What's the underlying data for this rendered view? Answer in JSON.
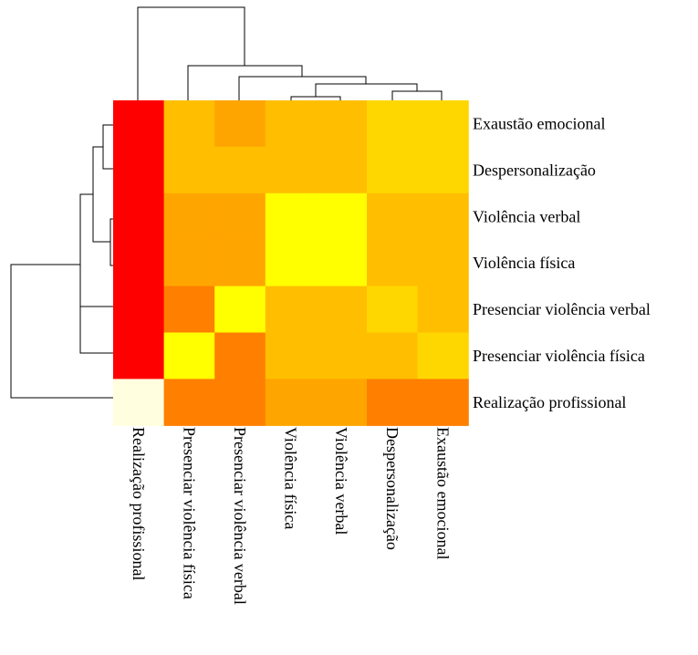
{
  "chart_data": {
    "type": "heatmap",
    "title": "",
    "rows": [
      "Exaustão emocional",
      "Despersonalização",
      "Violência verbal",
      "Violência física",
      "Presenciar violência verbal",
      "Presenciar violência física",
      "Realização profissional"
    ],
    "columns": [
      "Realização profissional",
      "Presenciar violência física",
      "Presenciar violência  verbal",
      "Violência física",
      "Violência verbal",
      "Despersonalização",
      "Exaustão emocional"
    ],
    "cell_colors": [
      [
        "#FF0000",
        "#FFBF00",
        "#FFA500",
        "#FFBF00",
        "#FFBF00",
        "#FFD700",
        "#FFD700"
      ],
      [
        "#FF0000",
        "#FFBF00",
        "#FFBF00",
        "#FFBF00",
        "#FFBF00",
        "#FFD700",
        "#FFD700"
      ],
      [
        "#FF0000",
        "#FFA500",
        "#FFA500",
        "#FFFF00",
        "#FFFF00",
        "#FFBF00",
        "#FFBF00"
      ],
      [
        "#FF0000",
        "#FFA500",
        "#FFA500",
        "#FFFF00",
        "#FFFF00",
        "#FFBF00",
        "#FFBF00"
      ],
      [
        "#FF0000",
        "#FF7F00",
        "#FFFF00",
        "#FFBF00",
        "#FFBF00",
        "#FFD700",
        "#FFBF00"
      ],
      [
        "#FF0000",
        "#FFFF00",
        "#FF7F00",
        "#FFBF00",
        "#FFBF00",
        "#FFBF00",
        "#FFD700"
      ],
      [
        "#FFFFE0",
        "#FF7F00",
        "#FF7F00",
        "#FFA500",
        "#FFA500",
        "#FF7F00",
        "#FF7F00"
      ]
    ],
    "dendrogram": "row and column hierarchical clustering trees",
    "legend": "none",
    "grid": false
  }
}
